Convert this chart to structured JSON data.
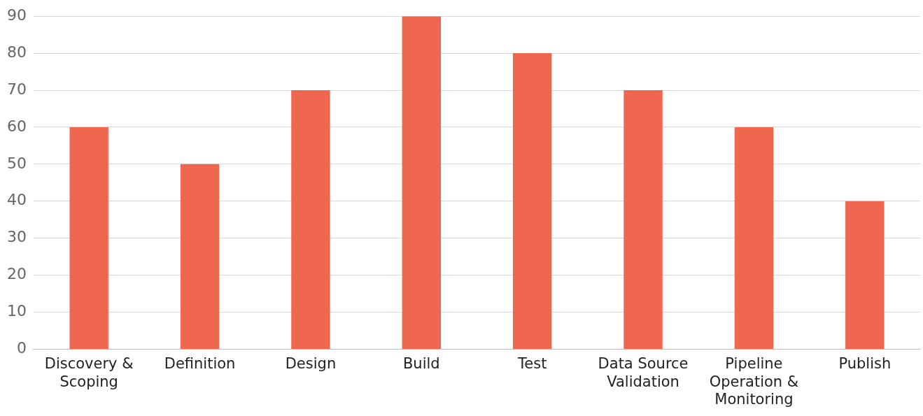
{
  "chart_data": {
    "type": "bar",
    "categories": [
      "Discovery & Scoping",
      "Definition",
      "Design",
      "Build",
      "Test",
      "Data Source Validation",
      "Pipeline Operation & Monitoring",
      "Publish"
    ],
    "values": [
      60,
      50,
      70,
      90,
      80,
      70,
      60,
      40
    ],
    "color": "#f0674f",
    "ylim": [
      0,
      90
    ],
    "yticks": [
      0,
      10,
      20,
      30,
      40,
      50,
      60,
      70,
      80,
      90
    ],
    "grid": "y",
    "legend": false
  }
}
